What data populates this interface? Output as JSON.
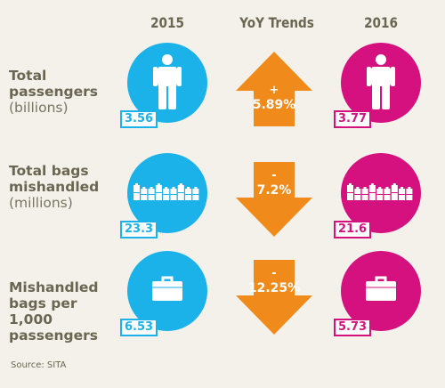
{
  "colors": {
    "y2015": "#1ab2e8",
    "y2016": "#d4117f",
    "trend": "#f08a1b",
    "text": "#6b6652"
  },
  "headers": {
    "col1": "2015",
    "col2": "YoY Trends",
    "col3": "2016"
  },
  "rows": [
    {
      "label_bold": "Total passengers",
      "label_sub": "(billions)",
      "icon": "person-icon",
      "v2015": "3.56",
      "v2016": "3.77",
      "trend_sign": "+",
      "trend_pct": "5.89%",
      "trend_dir": "up"
    },
    {
      "label_bold": "Total bags mishandled",
      "label_sub": "(millions)",
      "icon": "luggage-row-icon",
      "v2015": "23.3",
      "v2016": "21.6",
      "trend_sign": "-",
      "trend_pct": "7.2%",
      "trend_dir": "down"
    },
    {
      "label_bold": "Mishandled bags per 1,000 passengers",
      "label_sub": "",
      "icon": "briefcase-icon",
      "v2015": "6.53",
      "v2016": "5.73",
      "trend_sign": "-",
      "trend_pct": "12.25%",
      "trend_dir": "down"
    }
  ],
  "chart_data": {
    "type": "table",
    "columns": [
      "2015",
      "YoY Trends",
      "2016"
    ],
    "rows": [
      {
        "metric": "Total passengers (billions)",
        "2015": 3.56,
        "YoY Trends": "+5.89%",
        "2016": 3.77
      },
      {
        "metric": "Total bags mishandled (millions)",
        "2015": 23.3,
        "YoY Trends": "-7.2%",
        "2016": 21.6
      },
      {
        "metric": "Mishandled bags per 1,000 passengers",
        "2015": 6.53,
        "YoY Trends": "-12.25%",
        "2016": 5.73
      }
    ]
  },
  "source": "Source: SITA"
}
